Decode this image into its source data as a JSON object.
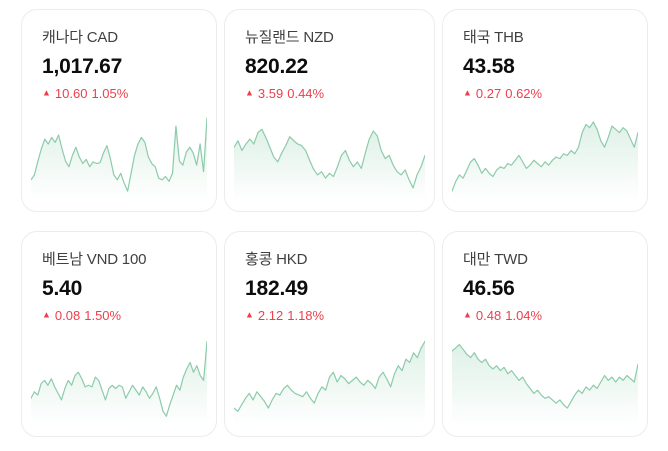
{
  "page": {
    "background": "#ffffff"
  },
  "colors": {
    "up_red": "#ef3e4b",
    "spark_line": "#8ccbaa",
    "card_border": "#ececec",
    "title_text": "#404040",
    "value_text": "#0d0d0d"
  },
  "cards": [
    {
      "title": "캐나다 CAD",
      "value": "1,017.67",
      "arrow": "▲",
      "change": "10.60",
      "change_pct": "1.05%"
    },
    {
      "title": "뉴질랜드 NZD",
      "value": "820.22",
      "arrow": "▲",
      "change": "3.59",
      "change_pct": "0.44%"
    },
    {
      "title": "태국 THB",
      "value": "43.58",
      "arrow": "▲",
      "change": "0.27",
      "change_pct": "0.62%"
    },
    {
      "title": "베트남 VND 100",
      "value": "5.40",
      "arrow": "▲",
      "change": "0.08",
      "change_pct": "1.50%"
    },
    {
      "title": "홍콩 HKD",
      "value": "182.49",
      "arrow": "▲",
      "change": "2.12",
      "change_pct": "1.18%"
    },
    {
      "title": "대만 TWD",
      "value": "46.56",
      "arrow": "▲",
      "change": "0.48",
      "change_pct": "1.04%"
    }
  ],
  "chart_data": [
    {
      "type": "area",
      "title": "캐나다 CAD sparkline",
      "ylim": [
        0,
        100
      ],
      "axes": "hidden",
      "values": [
        22,
        28,
        45,
        60,
        72,
        66,
        74,
        68,
        77,
        60,
        45,
        38,
        52,
        62,
        50,
        42,
        47,
        38,
        44,
        42,
        43,
        55,
        64,
        48,
        28,
        22,
        30,
        18,
        8,
        30,
        52,
        66,
        74,
        68,
        50,
        42,
        38,
        24,
        22,
        26,
        20,
        30,
        88,
        45,
        40,
        56,
        62,
        55,
        40,
        66,
        32,
        98
      ]
    },
    {
      "type": "area",
      "title": "뉴질랜드 NZD sparkline",
      "ylim": [
        0,
        100
      ],
      "axes": "hidden",
      "values": [
        62,
        70,
        58,
        66,
        72,
        66,
        80,
        84,
        74,
        62,
        50,
        44,
        55,
        64,
        75,
        70,
        66,
        64,
        58,
        46,
        35,
        28,
        32,
        24,
        30,
        26,
        38,
        52,
        58,
        46,
        38,
        44,
        36,
        55,
        72,
        82,
        76,
        58,
        48,
        52,
        40,
        32,
        28,
        34,
        22,
        12,
        28,
        38,
        52
      ]
    },
    {
      "type": "area",
      "title": "태국 THB sparkline",
      "ylim": [
        0,
        100
      ],
      "axes": "hidden",
      "values": [
        8,
        20,
        28,
        24,
        34,
        44,
        48,
        40,
        30,
        36,
        30,
        26,
        34,
        38,
        36,
        42,
        40,
        46,
        52,
        44,
        36,
        40,
        46,
        42,
        38,
        44,
        40,
        46,
        50,
        48,
        54,
        52,
        58,
        54,
        62,
        80,
        90,
        86,
        93,
        84,
        70,
        62,
        74,
        88,
        84,
        80,
        86,
        82,
        72,
        62,
        80
      ]
    },
    {
      "type": "area",
      "title": "베트남 VND 100 sparkline",
      "ylim": [
        0,
        100
      ],
      "axes": "hidden",
      "values": [
        30,
        38,
        34,
        48,
        52,
        46,
        54,
        44,
        36,
        28,
        42,
        52,
        46,
        58,
        62,
        54,
        44,
        46,
        44,
        56,
        52,
        40,
        28,
        42,
        46,
        42,
        46,
        44,
        30,
        38,
        46,
        40,
        34,
        44,
        38,
        30,
        36,
        44,
        30,
        14,
        8,
        22,
        34,
        46,
        40,
        56,
        66,
        74,
        62,
        70,
        58,
        52,
        100
      ]
    },
    {
      "type": "area",
      "title": "홍콩 HKD sparkline",
      "ylim": [
        0,
        100
      ],
      "axes": "hidden",
      "values": [
        18,
        14,
        22,
        30,
        36,
        28,
        38,
        32,
        26,
        18,
        28,
        36,
        34,
        42,
        46,
        40,
        36,
        34,
        32,
        38,
        30,
        24,
        36,
        44,
        40,
        56,
        62,
        50,
        58,
        54,
        48,
        52,
        56,
        50,
        46,
        52,
        48,
        42,
        56,
        62,
        54,
        44,
        60,
        70,
        64,
        78,
        74,
        86,
        80,
        92,
        100
      ]
    },
    {
      "type": "area",
      "title": "대만 TWD sparkline",
      "ylim": [
        0,
        100
      ],
      "axes": "hidden",
      "values": [
        88,
        92,
        96,
        90,
        84,
        80,
        86,
        78,
        74,
        78,
        70,
        66,
        70,
        64,
        68,
        60,
        64,
        58,
        52,
        56,
        48,
        42,
        36,
        40,
        34,
        30,
        32,
        28,
        24,
        28,
        22,
        18,
        26,
        34,
        40,
        36,
        44,
        40,
        46,
        42,
        50,
        58,
        52,
        56,
        50,
        56,
        52,
        58,
        54,
        50,
        72
      ]
    }
  ]
}
